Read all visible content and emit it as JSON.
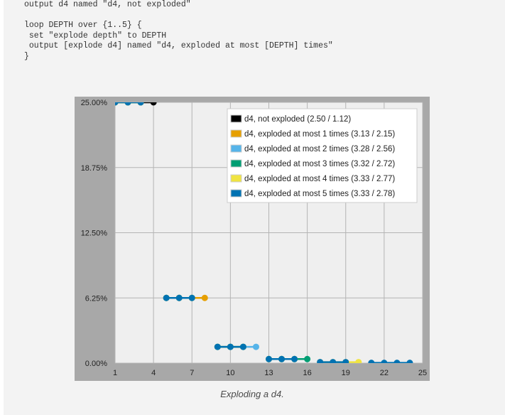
{
  "code_lines": [
    "output d4 named \"d4, not exploded\"",
    "",
    "loop DEPTH over {1..5} {",
    " set \"explode depth\" to DEPTH",
    " output [explode d4] named \"d4, exploded at most [DEPTH] times\"",
    "}"
  ],
  "caption": "Exploding a d4.",
  "chart_data": {
    "type": "line",
    "x_ticks": [
      1,
      4,
      7,
      10,
      13,
      16,
      19,
      22,
      25
    ],
    "y_ticks": [
      "25.00%",
      "18.75%",
      "12.50%",
      "6.25%",
      "0.00%"
    ],
    "xlim": [
      1,
      25
    ],
    "ylim": [
      0,
      25
    ],
    "grid": true,
    "legend_position": "top-right",
    "series": [
      {
        "name": "d4, not exploded (2.50 / 1.12)",
        "color": "#000000",
        "points": [
          [
            1,
            25
          ],
          [
            2,
            25
          ],
          [
            3,
            25
          ],
          [
            4,
            25
          ]
        ]
      },
      {
        "name": "d4, exploded at most 1 times (3.13 / 2.15)",
        "color": "#e69f00",
        "points": [
          [
            1,
            25
          ],
          [
            2,
            25
          ],
          [
            3,
            25
          ],
          [
            5,
            6.25
          ],
          [
            6,
            6.25
          ],
          [
            7,
            6.25
          ],
          [
            8,
            6.25
          ]
        ]
      },
      {
        "name": "d4, exploded at most 2 times (3.28 / 2.56)",
        "color": "#56b4e9",
        "points": [
          [
            1,
            25
          ],
          [
            2,
            25
          ],
          [
            3,
            25
          ],
          [
            5,
            6.25
          ],
          [
            6,
            6.25
          ],
          [
            7,
            6.25
          ],
          [
            9,
            1.5625
          ],
          [
            10,
            1.5625
          ],
          [
            11,
            1.5625
          ],
          [
            12,
            1.5625
          ]
        ]
      },
      {
        "name": "d4, exploded at most 3 times (3.32 / 2.72)",
        "color": "#009e73",
        "points": [
          [
            1,
            25
          ],
          [
            2,
            25
          ],
          [
            3,
            25
          ],
          [
            5,
            6.25
          ],
          [
            6,
            6.25
          ],
          [
            7,
            6.25
          ],
          [
            9,
            1.5625
          ],
          [
            10,
            1.5625
          ],
          [
            11,
            1.5625
          ],
          [
            13,
            0.390625
          ],
          [
            14,
            0.390625
          ],
          [
            15,
            0.390625
          ],
          [
            16,
            0.390625
          ]
        ]
      },
      {
        "name": "d4, exploded at most 4 times (3.33 / 2.77)",
        "color": "#f0e442",
        "points": [
          [
            1,
            25
          ],
          [
            2,
            25
          ],
          [
            3,
            25
          ],
          [
            5,
            6.25
          ],
          [
            6,
            6.25
          ],
          [
            7,
            6.25
          ],
          [
            9,
            1.5625
          ],
          [
            10,
            1.5625
          ],
          [
            11,
            1.5625
          ],
          [
            13,
            0.390625
          ],
          [
            14,
            0.390625
          ],
          [
            15,
            0.390625
          ],
          [
            17,
            0.09765625
          ],
          [
            18,
            0.09765625
          ],
          [
            19,
            0.09765625
          ],
          [
            20,
            0.09765625
          ]
        ]
      },
      {
        "name": "d4, exploded at most 5 times (3.33 / 2.78)",
        "color": "#0072b2",
        "points": [
          [
            1,
            25
          ],
          [
            2,
            25
          ],
          [
            3,
            25
          ],
          [
            5,
            6.25
          ],
          [
            6,
            6.25
          ],
          [
            7,
            6.25
          ],
          [
            9,
            1.5625
          ],
          [
            10,
            1.5625
          ],
          [
            11,
            1.5625
          ],
          [
            13,
            0.390625
          ],
          [
            14,
            0.390625
          ],
          [
            15,
            0.390625
          ],
          [
            17,
            0.09765625
          ],
          [
            18,
            0.09765625
          ],
          [
            19,
            0.09765625
          ],
          [
            21,
            0.0244140625
          ],
          [
            22,
            0.0244140625
          ],
          [
            23,
            0.0244140625
          ],
          [
            24,
            0.0244140625
          ]
        ]
      }
    ]
  }
}
